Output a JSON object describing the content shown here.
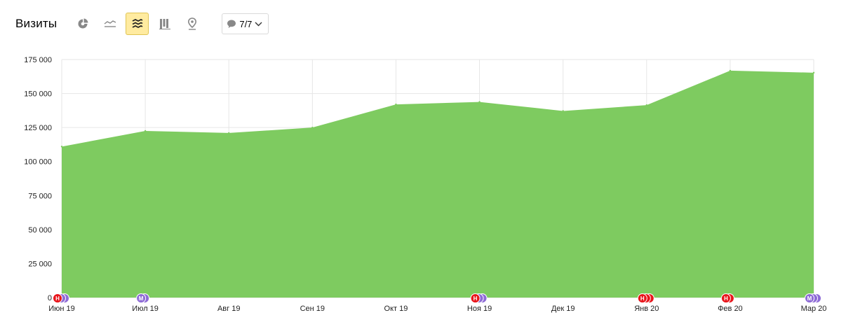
{
  "header": {
    "title": "Визиты",
    "notes_count_label": "7/7"
  },
  "toolbar": {
    "buttons": [
      {
        "name": "pie-chart-icon",
        "active": false
      },
      {
        "name": "line-chart-icon",
        "active": false
      },
      {
        "name": "area-chart-icon",
        "active": true
      },
      {
        "name": "bar-chart-icon",
        "active": false
      },
      {
        "name": "map-icon",
        "active": false
      }
    ],
    "notes_icon": "comment-icon",
    "dropdown_icon": "chevron-down-icon"
  },
  "colors": {
    "series": "#7ecb60",
    "grid": "#e6e6e6",
    "active_button": "#ffeba0",
    "marker_red": "#e8151b",
    "marker_purple": "#8e6bd6"
  },
  "chart_data": {
    "type": "area",
    "title": "",
    "xlabel": "",
    "ylabel": "",
    "x": [
      "Июн 19",
      "Июл 19",
      "Авг 19",
      "Сен 19",
      "Окт 19",
      "Ноя 19",
      "Дек 19",
      "Янв 20",
      "Фев 20",
      "Мар 20"
    ],
    "series": [
      {
        "values": [
          111000,
          122500,
          121000,
          125000,
          142000,
          143800,
          137200,
          141500,
          166800,
          165300
        ]
      }
    ],
    "ylim": [
      0,
      175000
    ],
    "yticks": [
      0,
      25000,
      50000,
      75000,
      100000,
      125000,
      150000,
      175000
    ],
    "ytick_labels": [
      "0",
      "25 000",
      "50 000",
      "75 000",
      "100 000",
      "125 000",
      "150 000",
      "175 000"
    ],
    "grid": true,
    "legend": "none",
    "note_markers": [
      {
        "x": "Июн 19",
        "labels": [
          "Н",
          "",
          ""
        ],
        "colors": [
          "red",
          "purple",
          "purple"
        ]
      },
      {
        "x": "Июл 19",
        "labels": [
          "М",
          ""
        ],
        "colors": [
          "purple",
          "purple"
        ]
      },
      {
        "x": "Ноя 19",
        "labels": [
          "Н",
          "",
          ""
        ],
        "colors": [
          "red",
          "purple",
          "purple"
        ]
      },
      {
        "x": "Янв 20",
        "labels": [
          "Н",
          "",
          ""
        ],
        "colors": [
          "red",
          "red",
          "red"
        ]
      },
      {
        "x": "Фев 20",
        "labels": [
          "Н",
          ""
        ],
        "colors": [
          "red",
          "red"
        ]
      },
      {
        "x": "Мар 20",
        "labels": [
          "М",
          "",
          ""
        ],
        "colors": [
          "purple",
          "purple",
          "purple"
        ]
      }
    ]
  }
}
